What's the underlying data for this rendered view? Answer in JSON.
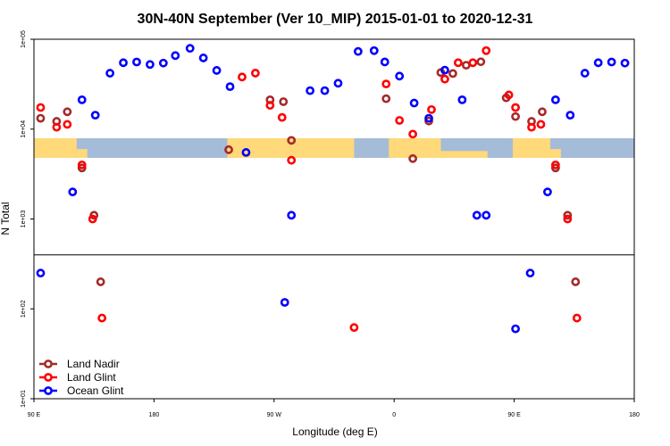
{
  "chart_data": {
    "type": "scatter",
    "title": "30N-40N September (Ver 10_MIP)   2015-01-01 to 2020-12-31",
    "xlabel": "Longitude (deg E)",
    "ylabel": "N Total",
    "xlim": [
      90,
      540
    ],
    "ylim_log10": [
      1,
      5
    ],
    "y_scale": "log",
    "grid": false,
    "legend_position": "bottom-left",
    "x_ticks": [
      {
        "value": 90,
        "label": "90 E"
      },
      {
        "value": 180,
        "label": "180"
      },
      {
        "value": 270,
        "label": "90 W"
      },
      {
        "value": 360,
        "label": "0"
      },
      {
        "value": 450,
        "label": "90 E"
      },
      {
        "value": 540,
        "label": "180"
      }
    ],
    "y_ticks": [
      {
        "value": 10,
        "label": "1e+01"
      },
      {
        "value": 100,
        "label": "1e+02"
      },
      {
        "value": 1000,
        "label": "1e+03"
      },
      {
        "value": 10000,
        "label": "1e+04"
      },
      {
        "value": 100000,
        "label": "1e+05"
      }
    ],
    "reference_line_y": 398,
    "colors": {
      "land_nadir": "#a52a2a",
      "land_glint": "#ff0000",
      "ocean_glint": "#0000ff",
      "map_ocean": "#a5bcd9",
      "map_land": "#ffd97a"
    },
    "series": [
      {
        "name": "Land Nadir",
        "color": "#a52a2a",
        "points": [
          [
            95,
            13200
          ],
          [
            107,
            12200
          ],
          [
            115,
            15600
          ],
          [
            126,
            3700
          ],
          [
            135,
            1100
          ],
          [
            140,
            200
          ],
          [
            236,
            5900
          ],
          [
            267,
            21200
          ],
          [
            277,
            20200
          ],
          [
            283,
            7500
          ],
          [
            354,
            21800
          ],
          [
            374,
            4700
          ],
          [
            386,
            12300
          ],
          [
            395,
            42600
          ],
          [
            404,
            41600
          ],
          [
            414,
            51400
          ],
          [
            425,
            56200
          ],
          [
            444,
            22300
          ],
          [
            451,
            13800
          ],
          [
            463,
            12200
          ],
          [
            471,
            15600
          ],
          [
            481,
            3700
          ],
          [
            490,
            1100
          ],
          [
            496,
            200
          ]
        ]
      },
      {
        "name": "Land Glint",
        "color": "#ff0000",
        "points": [
          [
            95,
            17400
          ],
          [
            107,
            10500
          ],
          [
            115,
            11300
          ],
          [
            126,
            4000
          ],
          [
            134,
            1000
          ],
          [
            141,
            79
          ],
          [
            246,
            38000
          ],
          [
            256,
            42000
          ],
          [
            267,
            18400
          ],
          [
            276,
            13500
          ],
          [
            283,
            4500
          ],
          [
            330,
            62
          ],
          [
            354,
            31800
          ],
          [
            364,
            12500
          ],
          [
            374,
            8800
          ],
          [
            388,
            16500
          ],
          [
            398,
            36000
          ],
          [
            408,
            54800
          ],
          [
            419,
            54800
          ],
          [
            429,
            74700
          ],
          [
            446,
            24000
          ],
          [
            451,
            17400
          ],
          [
            463,
            10500
          ],
          [
            470,
            11300
          ],
          [
            481,
            4000
          ],
          [
            490,
            1000
          ],
          [
            497,
            79
          ]
        ]
      },
      {
        "name": "Ocean Glint",
        "color": "#0000ff",
        "points": [
          [
            95,
            250
          ],
          [
            119,
            2000
          ],
          [
            126,
            21200
          ],
          [
            136,
            14300
          ],
          [
            147,
            41900
          ],
          [
            157,
            54800
          ],
          [
            167,
            55800
          ],
          [
            177,
            52400
          ],
          [
            187,
            54300
          ],
          [
            196,
            65800
          ],
          [
            207,
            79200
          ],
          [
            217,
            62000
          ],
          [
            227,
            45000
          ],
          [
            237,
            29700
          ],
          [
            249,
            5500
          ],
          [
            278,
            118
          ],
          [
            283,
            1100
          ],
          [
            297,
            26800
          ],
          [
            308,
            26800
          ],
          [
            318,
            32400
          ],
          [
            333,
            73100
          ],
          [
            345,
            74700
          ],
          [
            353,
            55900
          ],
          [
            364,
            38900
          ],
          [
            375,
            19500
          ],
          [
            386,
            13200
          ],
          [
            398,
            45300
          ],
          [
            411,
            21200
          ],
          [
            422,
            1100
          ],
          [
            429,
            1100
          ],
          [
            451,
            60
          ],
          [
            462,
            250
          ],
          [
            475,
            2000
          ],
          [
            481,
            21200
          ],
          [
            492,
            14300
          ],
          [
            503,
            41900
          ],
          [
            513,
            54800
          ],
          [
            523,
            55800
          ],
          [
            533,
            54300
          ]
        ]
      }
    ]
  }
}
